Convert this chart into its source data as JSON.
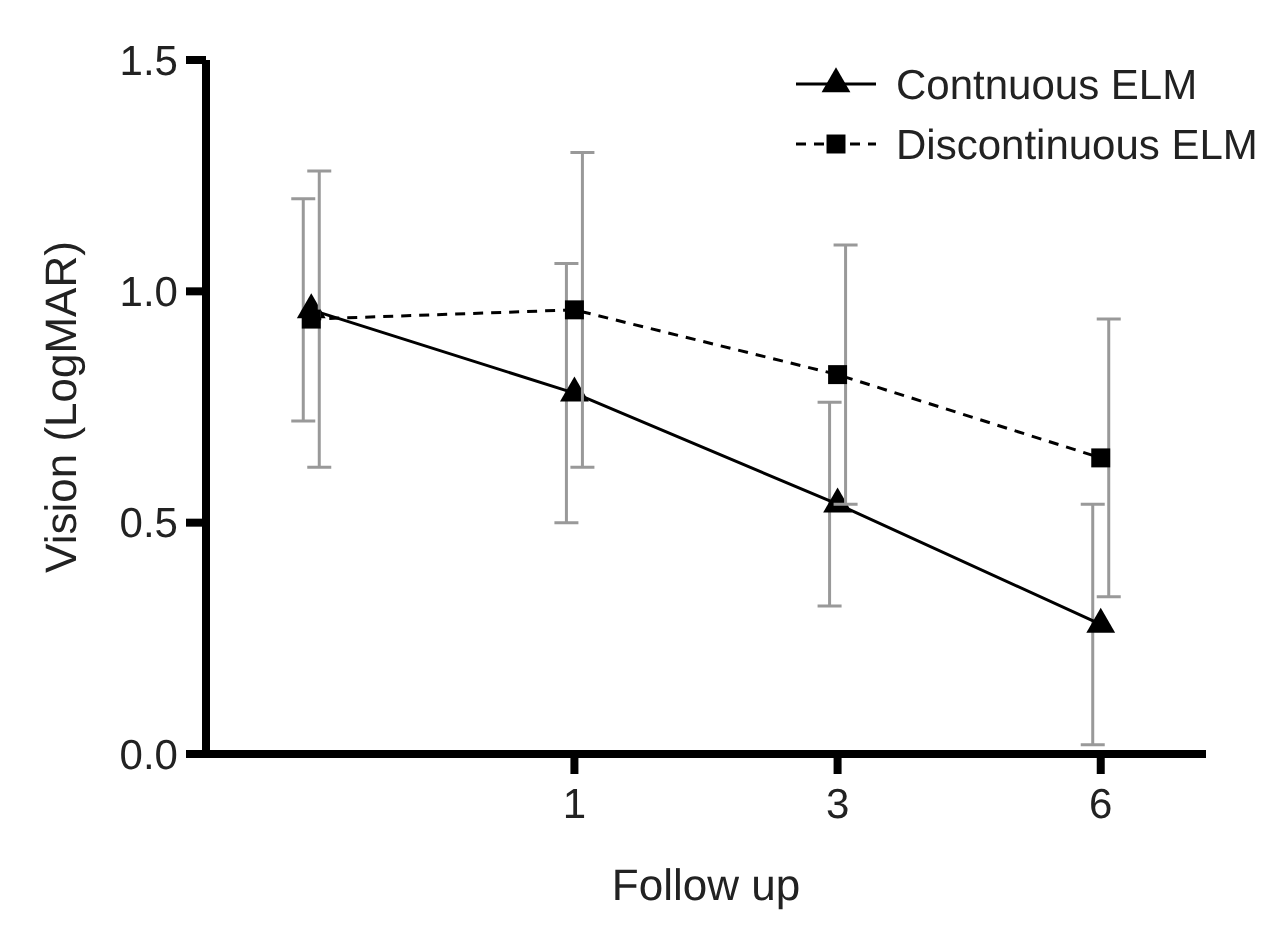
{
  "chart_data": {
    "type": "line",
    "xlabel": "Follow up",
    "ylabel": "Vision (LogMAR)",
    "categories": [
      null,
      "1",
      "3",
      "6"
    ],
    "ylim": [
      0,
      1.5
    ],
    "yticks": [
      {
        "value": 0,
        "label": "0.0"
      },
      {
        "value": 0.5,
        "label": "0.5"
      },
      {
        "value": 1,
        "label": "1.0"
      },
      {
        "value": 1.5,
        "label": "1.5"
      }
    ],
    "grid": false,
    "legend": "top right",
    "series": [
      {
        "name": "Contnuous ELM",
        "color": "#000000",
        "marker": "triangle",
        "line_style": "solid",
        "values": [
          0.96,
          0.78,
          0.54,
          0.28
        ],
        "errors": [
          [
            0.72,
            1.2
          ],
          [
            0.5,
            1.06
          ],
          [
            0.32,
            0.76
          ],
          [
            0.02,
            0.54
          ]
        ]
      },
      {
        "name": "Discontinuous ELM",
        "color": "#000000",
        "marker": "square",
        "line_style": "dashed",
        "values": [
          0.94,
          0.96,
          0.82,
          0.64
        ],
        "errors": [
          [
            0.62,
            1.26
          ],
          [
            0.62,
            1.3
          ],
          [
            0.54,
            1.1
          ],
          [
            0.34,
            0.94
          ]
        ]
      }
    ]
  }
}
